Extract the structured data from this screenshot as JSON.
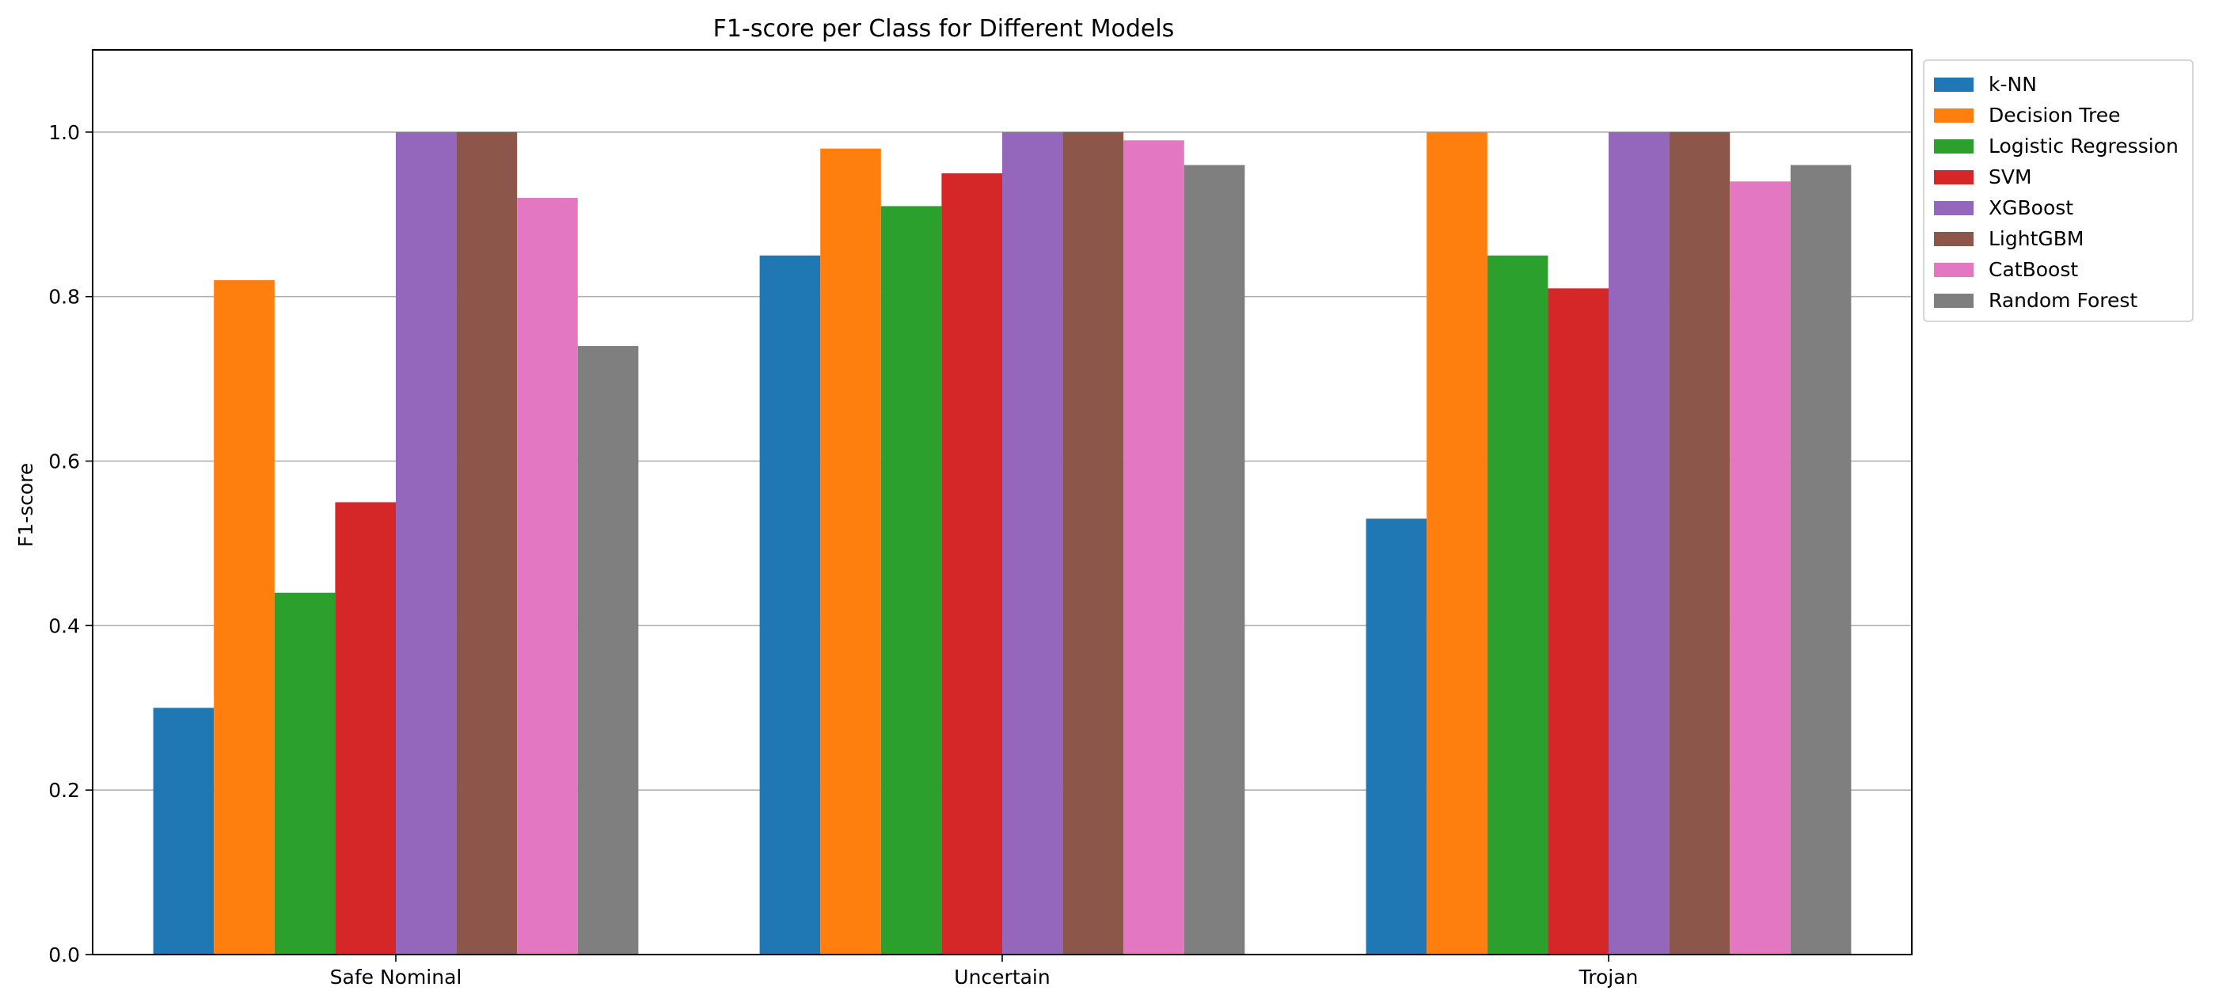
{
  "chart_data": {
    "type": "bar",
    "title": "F1-score per Class for Different Models",
    "xlabel": "",
    "ylabel": "F1-score",
    "categories": [
      "Safe Nominal",
      "Uncertain",
      "Trojan"
    ],
    "ylim": [
      0,
      1.1
    ],
    "yticks": [
      "0.0",
      "0.2",
      "0.4",
      "0.6",
      "0.8",
      "1.0"
    ],
    "grid": "y",
    "legend_position": "outside-top-right",
    "series": [
      {
        "name": "k-NN",
        "color": "#1f77b4",
        "values": [
          0.3,
          0.85,
          0.53
        ]
      },
      {
        "name": "Decision Tree",
        "color": "#ff7f0e",
        "values": [
          0.82,
          0.98,
          1.0
        ]
      },
      {
        "name": "Logistic Regression",
        "color": "#2ca02c",
        "values": [
          0.44,
          0.91,
          0.85
        ]
      },
      {
        "name": "SVM",
        "color": "#d62728",
        "values": [
          0.55,
          0.95,
          0.81
        ]
      },
      {
        "name": "XGBoost",
        "color": "#9467bd",
        "values": [
          1.0,
          1.0,
          1.0
        ]
      },
      {
        "name": "LightGBM",
        "color": "#8c564b",
        "values": [
          1.0,
          1.0,
          1.0
        ]
      },
      {
        "name": "CatBoost",
        "color": "#e377c2",
        "values": [
          0.92,
          0.99,
          0.94
        ]
      },
      {
        "name": "Random Forest",
        "color": "#7f7f7f",
        "values": [
          0.74,
          0.96,
          0.96
        ]
      }
    ]
  }
}
